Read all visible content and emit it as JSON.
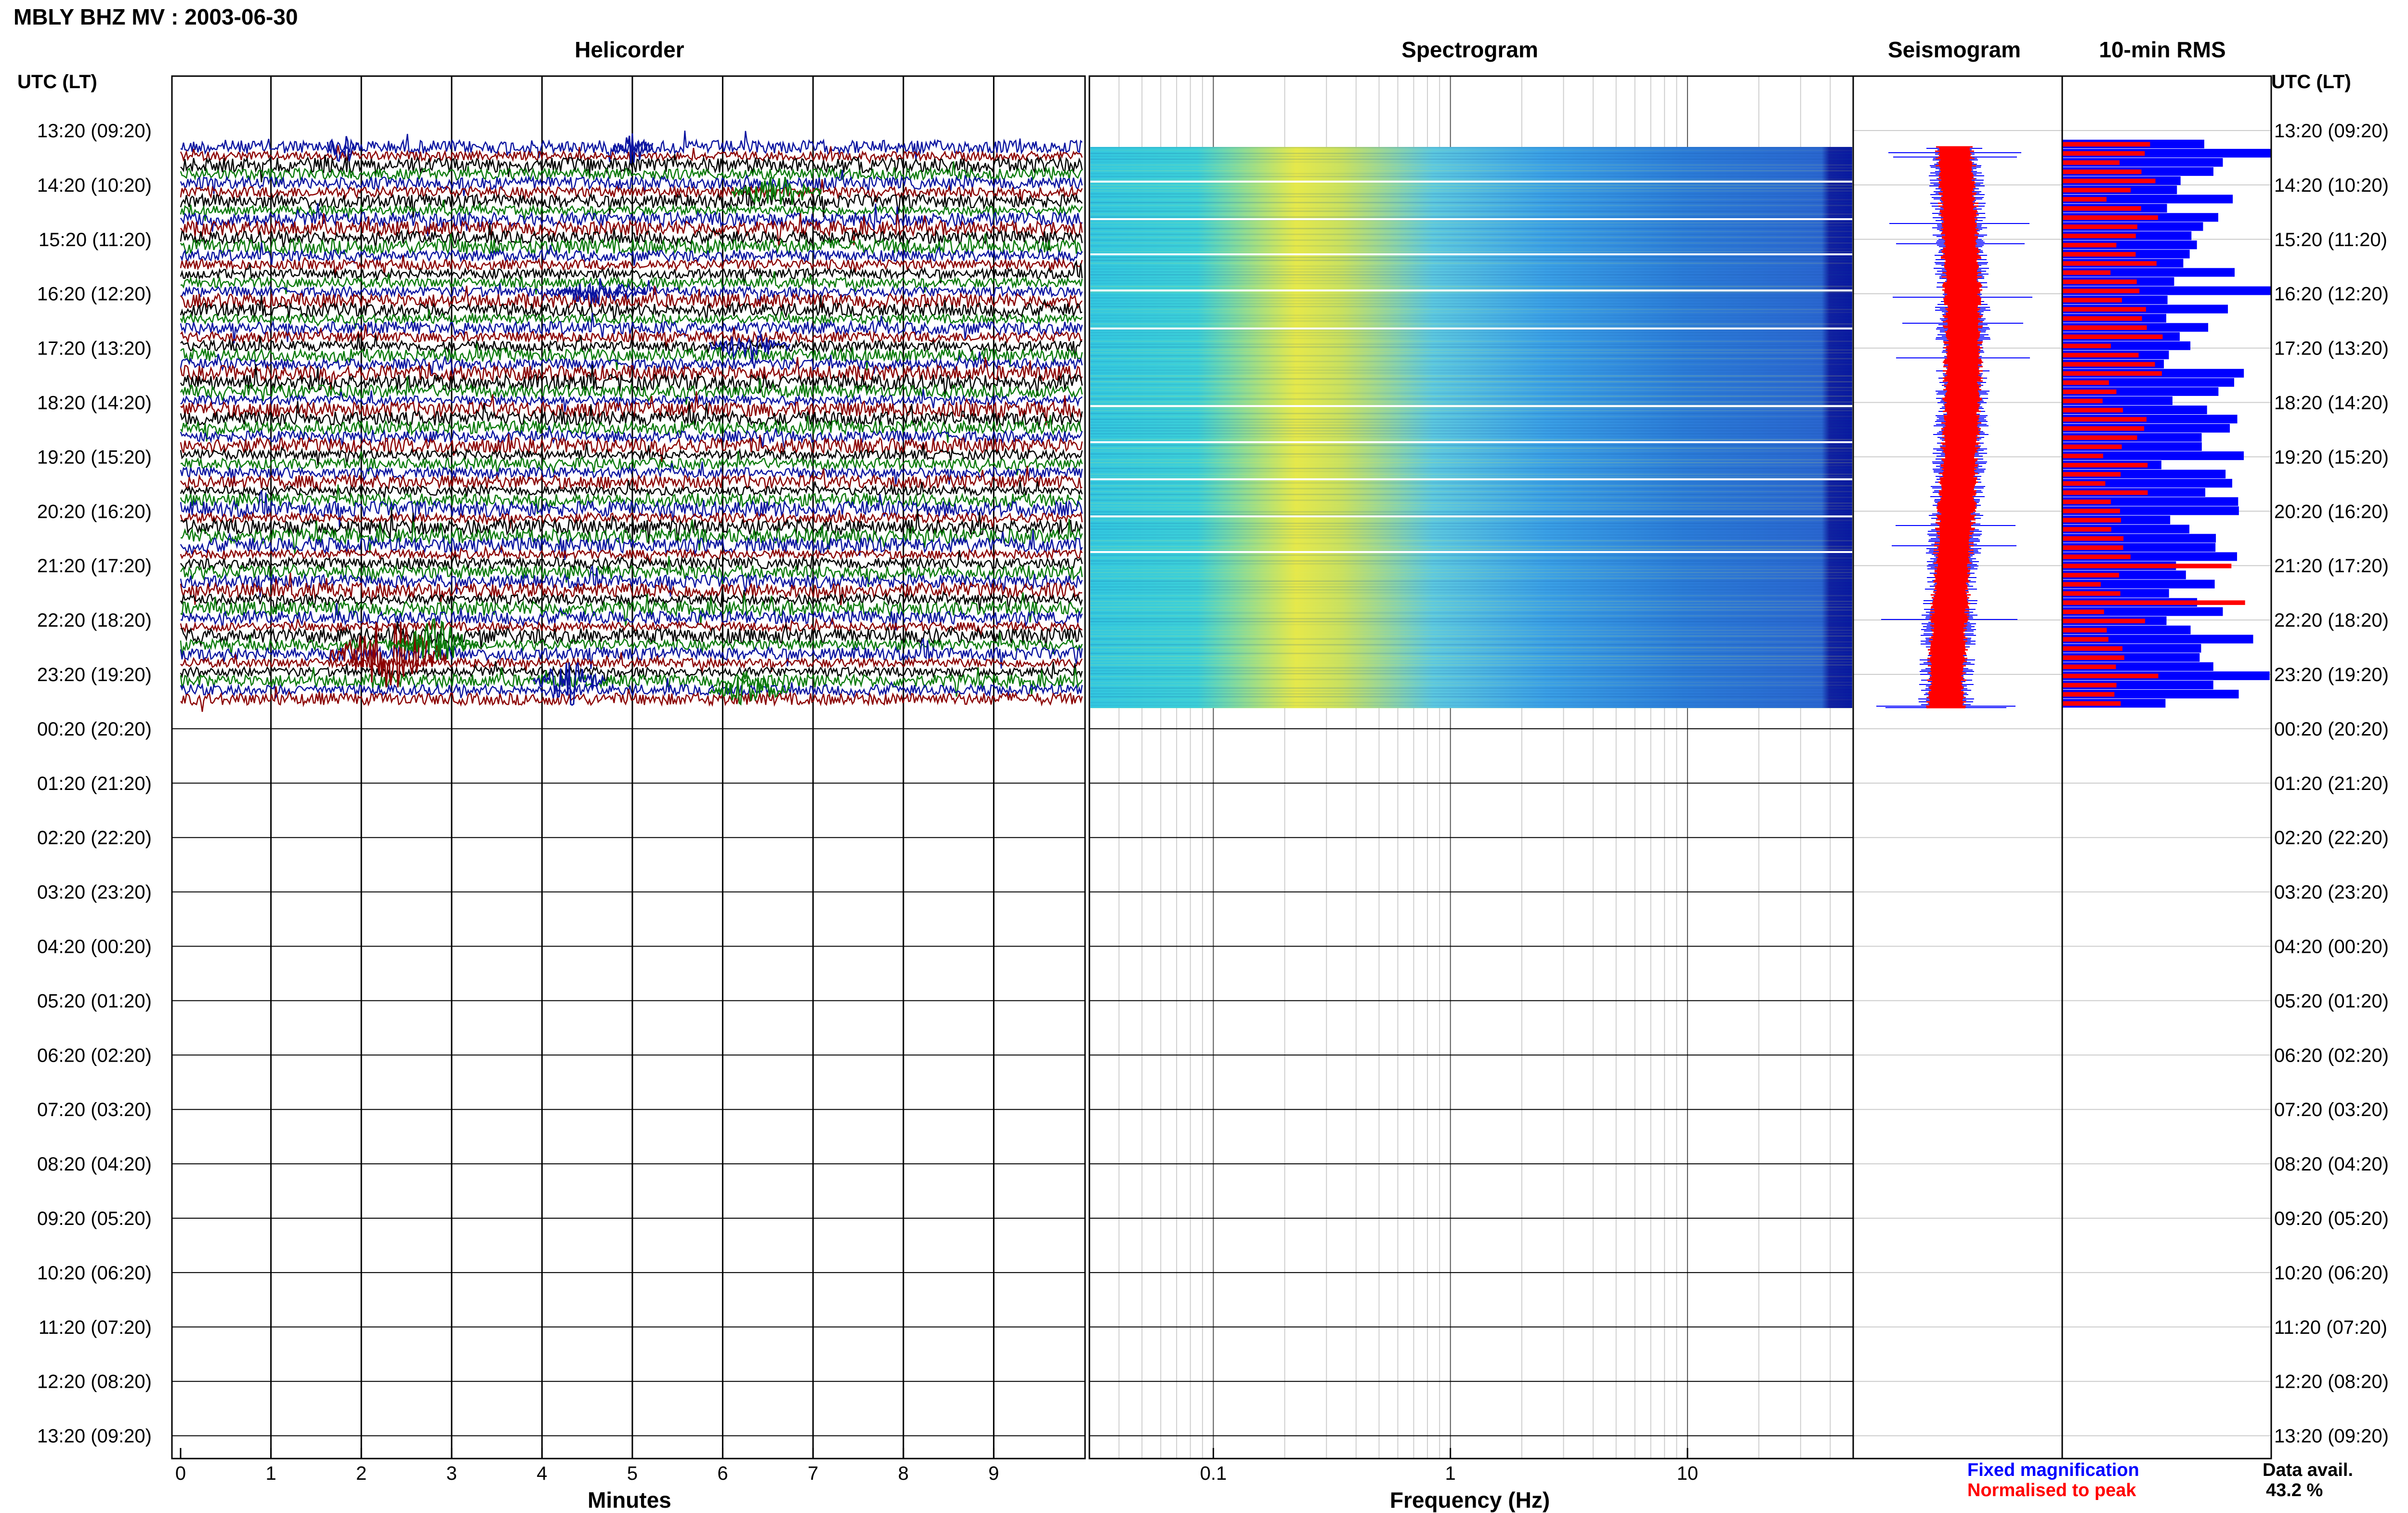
{
  "title": "MBLY BHZ MV : 2003-06-30",
  "left_axis_header": "UTC (LT)",
  "right_axis_header": "UTC (LT)",
  "row_labels": [
    "13:20 (09:20)",
    "14:20 (10:20)",
    "15:20 (11:20)",
    "16:20 (12:20)",
    "17:20 (13:20)",
    "18:20 (14:20)",
    "19:20 (15:20)",
    "20:20 (16:20)",
    "21:20 (17:20)",
    "22:20 (18:20)",
    "23:20 (19:20)",
    "00:20 (20:20)",
    "01:20 (21:20)",
    "02:20 (22:20)",
    "03:20 (23:20)",
    "04:20 (00:20)",
    "05:20 (01:20)",
    "06:20 (02:20)",
    "07:20 (03:20)",
    "08:20 (04:20)",
    "09:20 (05:20)",
    "10:20 (06:20)",
    "11:20 (07:20)",
    "12:20 (08:20)",
    "13:20 (09:20)"
  ],
  "colors": {
    "blue": "#0a14a0",
    "red": "#8b0000",
    "green": "#0a7a0a",
    "black": "#000000",
    "rms_blue": "#0000ff",
    "rms_red": "#ff0000"
  },
  "chart_data": [
    {
      "type": "line",
      "title": "Helicorder",
      "xlabel": "Minutes",
      "ylabel": "UTC (LT)",
      "xticks": [
        "0",
        "1",
        "2",
        "3",
        "4",
        "5",
        "6",
        "7",
        "8",
        "9"
      ],
      "xlim": [
        0,
        10
      ],
      "trace_colors": [
        "blue",
        "red",
        "black",
        "green"
      ],
      "rows_with_data": 62,
      "rows_total": 144
    },
    {
      "type": "heatmap",
      "title": "Spectrogram",
      "xlabel": "Frequency (Hz)",
      "xscale": "log",
      "xticks": [
        "0.1",
        "1",
        "10"
      ],
      "xlim": [
        0.03,
        50
      ]
    },
    {
      "type": "line",
      "title": "Seismogram",
      "legend": [
        {
          "name": "Fixed magnification",
          "color": "#0000ff"
        },
        {
          "name": "Normalised to peak",
          "color": "#ff0000"
        }
      ]
    },
    {
      "type": "bar",
      "title": "10-min RMS",
      "orientation": "horizontal",
      "series": [
        {
          "name": "Fixed magnification",
          "color": "#0000ff"
        },
        {
          "name": "Normalised to peak",
          "color": "#ff0000"
        }
      ]
    }
  ],
  "data_availability": {
    "label": "Data avail.",
    "value": "43.2 %"
  }
}
